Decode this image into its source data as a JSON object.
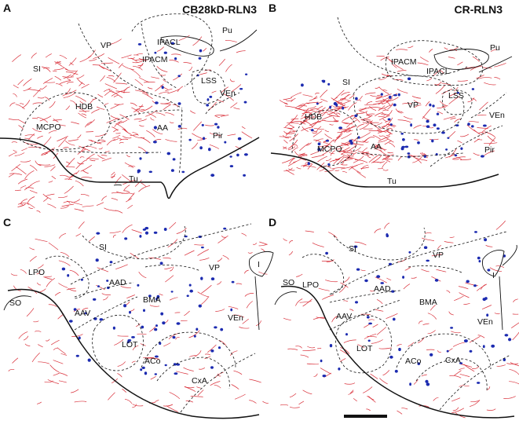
{
  "panels": [
    {
      "letter": "A",
      "title": "CB28kD-RLN3",
      "regions": [
        "VP",
        "Pu",
        "IPACL",
        "IPACM",
        "SI",
        "LSS",
        "VEn",
        "HDB",
        "MCPO",
        "AA",
        "Pir",
        "Tu"
      ]
    },
    {
      "letter": "B",
      "title": "CR-RLN3",
      "regions": [
        "Pu",
        "IPACM",
        "IPACL",
        "SI",
        "VP",
        "LSS",
        "VEn",
        "HDB",
        "MCPO",
        "AA",
        "Pir",
        "Tu"
      ]
    },
    {
      "letter": "C",
      "title": "",
      "regions": [
        "SI",
        "VP",
        "I",
        "LPO",
        "AAD",
        "SO",
        "BMA",
        "AAV",
        "VEn",
        "LOT",
        "ACo",
        "CxA"
      ]
    },
    {
      "letter": "D",
      "title": "",
      "regions": [
        "SI",
        "VP",
        "I",
        "LPO",
        "AAD",
        "SO",
        "BMA",
        "AAV",
        "VEn",
        "LOT",
        "ACo",
        "CxA"
      ]
    }
  ],
  "colors": {
    "fibers": "#d9303a",
    "neurons": "#1c2bb0",
    "outlines": "#111111"
  }
}
